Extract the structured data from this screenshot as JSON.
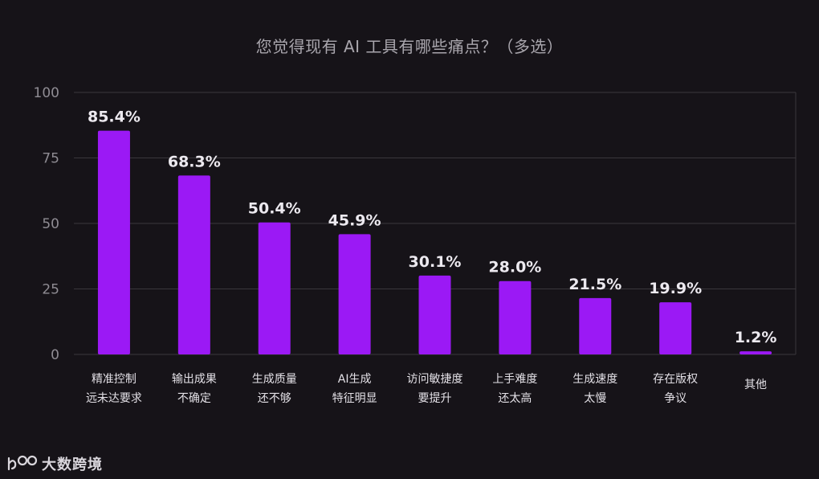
{
  "chart_data": {
    "type": "bar",
    "title": "您觉得现有 AI 工具有哪些痛点？（多选）",
    "categories": [
      [
        "精准控制",
        "远未达要求"
      ],
      [
        "输出成果",
        "不确定"
      ],
      [
        "生成质量",
        "还不够"
      ],
      [
        "AI生成",
        "特征明显"
      ],
      [
        "访问敏捷度",
        "要提升"
      ],
      [
        "上手难度",
        "还太高"
      ],
      [
        "生成速度",
        "太慢"
      ],
      [
        "存在版权",
        "争议"
      ],
      [
        "其他"
      ]
    ],
    "values": [
      85.4,
      68.3,
      50.4,
      45.9,
      30.1,
      28.0,
      21.5,
      19.9,
      1.2
    ],
    "data_labels": [
      "85.4%",
      "68.3%",
      "50.4%",
      "45.9%",
      "30.1%",
      "28.0%",
      "21.5%",
      "19.9%",
      "1.2%"
    ],
    "ylim": [
      0,
      100
    ],
    "yticks": [
      0,
      25,
      50,
      75,
      100
    ],
    "grid": true,
    "bar_color": "#9b19f5",
    "axis_color": "#3a373c"
  },
  "branding": {
    "logo_text": "大数跨境"
  }
}
